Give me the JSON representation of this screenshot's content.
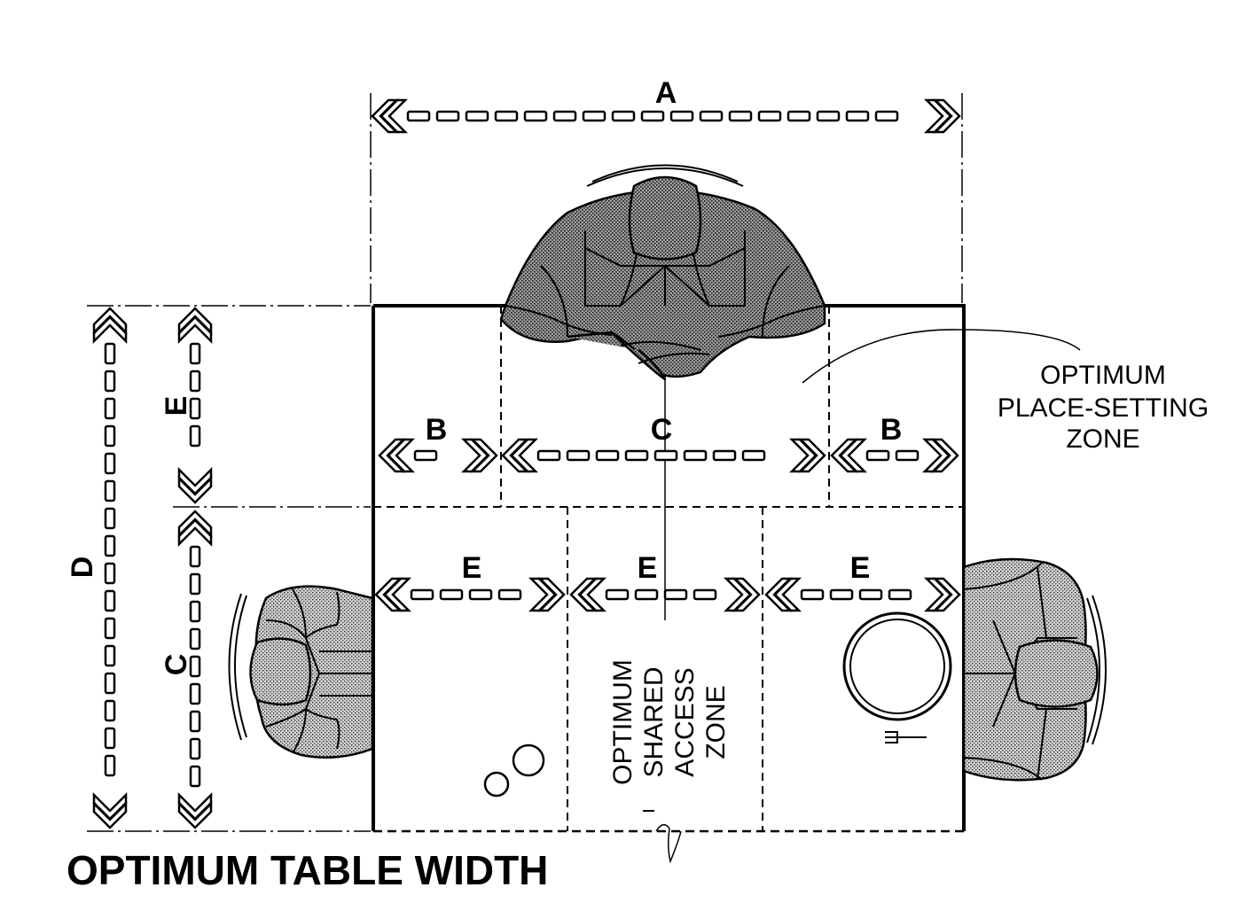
{
  "title": "OPTIMUM TABLE WIDTH",
  "dimension_labels": {
    "a": "A",
    "b_left": "B",
    "c_top": "C",
    "b_right": "B",
    "e_left": "E",
    "e_middle": "E",
    "e_right": "E",
    "d_vertical": "D",
    "e_vertical": "E",
    "c_vertical": "C"
  },
  "zones": {
    "place_setting": [
      "OPTIMUM",
      "PLACE-SETTING",
      "ZONE"
    ],
    "shared_access": [
      "OPTIMUM",
      "SHARED",
      "ACCESS",
      "ZONE"
    ]
  },
  "colors": {
    "ink": "#000000",
    "paper": "#ffffff",
    "figure_tone": "#8a8a8a",
    "figure_tone_light": "#b9b9b9"
  }
}
